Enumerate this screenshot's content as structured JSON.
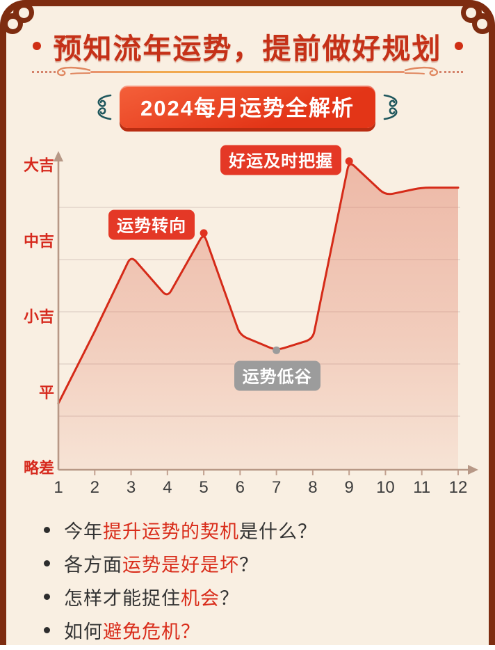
{
  "page": {
    "background": "#f9efe2",
    "frame_color": "#7e2c10"
  },
  "header": {
    "title": "预知流年运势，提前做好规划"
  },
  "banner": {
    "label": "2024每月运势全解析"
  },
  "chart_data": {
    "type": "area",
    "title": "2024每月运势全解析",
    "x": [
      1,
      2,
      3,
      4,
      5,
      6,
      7,
      8,
      9,
      10,
      11,
      12
    ],
    "xlabel": "",
    "ylabel": "",
    "values": [
      0.85,
      1.8,
      2.8,
      2.25,
      3.1,
      1.75,
      1.55,
      1.7,
      4.05,
      3.6,
      3.7,
      3.7
    ],
    "y_ticks": [
      {
        "label": "略差",
        "value": 0
      },
      {
        "label": "平",
        "value": 1
      },
      {
        "label": "小吉",
        "value": 2
      },
      {
        "label": "中吉",
        "value": 3
      },
      {
        "label": "大吉",
        "value": 4
      }
    ],
    "ylim": [
      0,
      4.35
    ],
    "grid": true,
    "line_color": "#d52a18",
    "fill_color": "#e07a62",
    "axis_color": "#b79886",
    "y_label_color": "#d62a1e",
    "x_label_color": "#3d3d3d",
    "annotations": [
      {
        "label": "运势转向",
        "month": 5,
        "value": 3.1,
        "style": "red"
      },
      {
        "label": "好运及时把握",
        "month": 9,
        "value": 4.05,
        "style": "red"
      },
      {
        "label": "运势低谷",
        "month": 7,
        "value": 1.55,
        "style": "gray"
      }
    ],
    "markers": [
      {
        "month": 5,
        "value": 3.1,
        "color": "#e03320"
      },
      {
        "month": 9,
        "value": 4.05,
        "color": "#e03320"
      },
      {
        "month": 7,
        "value": 1.55,
        "color": "#9b9b9b"
      }
    ]
  },
  "bullets": [
    {
      "segments": [
        {
          "text": "今年",
          "color": "dark"
        },
        {
          "text": "提升运势的契机",
          "color": "red"
        },
        {
          "text": "是什么？",
          "color": "dark"
        }
      ]
    },
    {
      "segments": [
        {
          "text": "各方面",
          "color": "dark"
        },
        {
          "text": "运势是好是坏",
          "color": "red"
        },
        {
          "text": "？",
          "color": "dark"
        }
      ]
    },
    {
      "segments": [
        {
          "text": "怎样才能捉住",
          "color": "dark"
        },
        {
          "text": "机会",
          "color": "red"
        },
        {
          "text": "？",
          "color": "dark"
        }
      ]
    },
    {
      "segments": [
        {
          "text": "如何",
          "color": "dark"
        },
        {
          "text": "避免危机？",
          "color": "red"
        }
      ]
    }
  ]
}
